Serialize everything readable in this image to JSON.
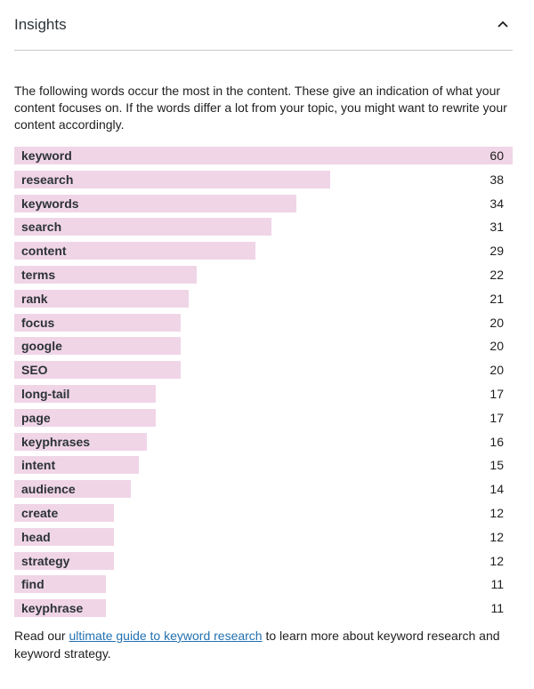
{
  "header": {
    "title": "Insights",
    "toggle_icon": "chevron-up-icon"
  },
  "intro": "The following words occur the most in the content. These give an indication of what your content focuses on. If the words differ a lot from your topic, you might want to rewrite your content accordingly.",
  "words": [
    {
      "word": "keyword",
      "count": 60
    },
    {
      "word": "research",
      "count": 38
    },
    {
      "word": "keywords",
      "count": 34
    },
    {
      "word": "search",
      "count": 31
    },
    {
      "word": "content",
      "count": 29
    },
    {
      "word": "terms",
      "count": 22
    },
    {
      "word": "rank",
      "count": 21
    },
    {
      "word": "focus",
      "count": 20
    },
    {
      "word": "google",
      "count": 20
    },
    {
      "word": "SEO",
      "count": 20
    },
    {
      "word": "long-tail",
      "count": 17
    },
    {
      "word": "page",
      "count": 17
    },
    {
      "word": "keyphrases",
      "count": 16
    },
    {
      "word": "intent",
      "count": 15
    },
    {
      "word": "audience",
      "count": 14
    },
    {
      "word": "create",
      "count": 12
    },
    {
      "word": "head",
      "count": 12
    },
    {
      "word": "strategy",
      "count": 12
    },
    {
      "word": "find",
      "count": 11
    },
    {
      "word": "keyphrase",
      "count": 11
    }
  ],
  "footer": {
    "before": "Read our ",
    "link_text": "ultimate guide to keyword research",
    "after": " to learn more about keyword research and keyword strategy."
  },
  "colors": {
    "bar": "#f0d5e7",
    "link": "#2271b1"
  }
}
